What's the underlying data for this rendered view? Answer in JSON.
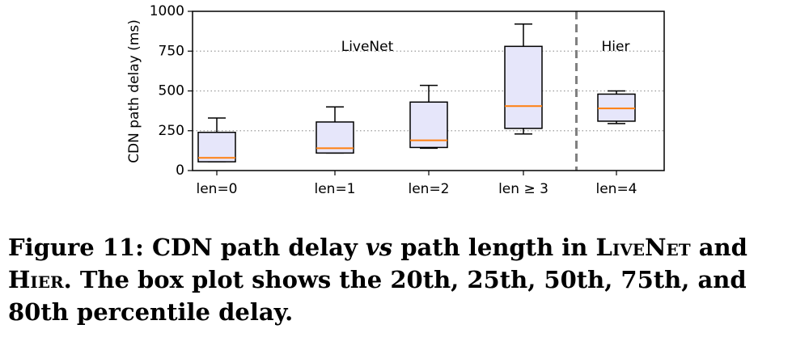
{
  "chart_data": {
    "type": "box",
    "ylabel": "CDN path delay (ms)",
    "ylim": [
      0,
      1000
    ],
    "yticks": [
      0,
      250,
      500,
      750,
      1000
    ],
    "ytick_labels": [
      "0",
      "250",
      "500",
      "750",
      "1000"
    ],
    "grid": "y-dotted",
    "categories": [
      "len=0",
      "len=1",
      "len=2",
      "len ≥ 3",
      "len=4"
    ],
    "boxes": [
      {
        "label": "len=0",
        "p20": 55,
        "p25": 55,
        "p50": 80,
        "p75": 240,
        "p80": 330
      },
      {
        "label": "len=1",
        "p20": 110,
        "p25": 110,
        "p50": 140,
        "p75": 305,
        "p80": 400
      },
      {
        "label": "len=2",
        "p20": 140,
        "p25": 145,
        "p50": 190,
        "p75": 430,
        "p80": 535
      },
      {
        "label": "len ≥ 3",
        "p20": 230,
        "p25": 265,
        "p50": 405,
        "p75": 780,
        "p80": 920
      },
      {
        "label": "len=4",
        "p20": 295,
        "p25": 310,
        "p50": 390,
        "p75": 480,
        "p80": 500
      }
    ],
    "group_labels": [
      "LiveNet",
      "Hier"
    ],
    "divider_after_category": 3,
    "colors": {
      "box_fill": "#e6e6fa",
      "median": "#ff7f0e",
      "divider": "#808080"
    }
  },
  "caption": {
    "prefix": "Figure 11: CDN path delay ",
    "vs": "vs",
    "mid": " path length in ",
    "sys1": "LiveNet",
    "and": " and ",
    "sys2": "Hier",
    "rest": ". The box plot shows the 20th, 25th, 50th, 75th, and 80th percentile delay."
  }
}
